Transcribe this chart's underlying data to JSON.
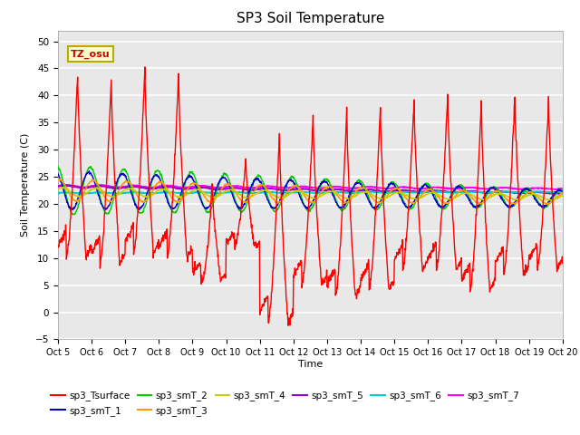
{
  "title": "SP3 Soil Temperature",
  "xlabel": "Time",
  "ylabel": "Soil Temperature (C)",
  "annotation": "TZ_osu",
  "ylim": [
    -5,
    52
  ],
  "xlim": [
    0,
    360
  ],
  "x_tick_labels": [
    "Oct 5",
    "Oct 6",
    "Oct 7",
    "Oct 8",
    "Oct 9",
    "Oct 10",
    "Oct 11",
    "Oct 12",
    "Oct 13",
    "Oct 14",
    "Oct 15",
    "Oct 16",
    "Oct 17",
    "Oct 18",
    "Oct 19",
    "Oct 20"
  ],
  "x_tick_positions": [
    0,
    24,
    48,
    72,
    96,
    120,
    144,
    168,
    192,
    216,
    240,
    264,
    288,
    312,
    336,
    360
  ],
  "y_ticks": [
    -5,
    0,
    5,
    10,
    15,
    20,
    25,
    30,
    35,
    40,
    45,
    50
  ],
  "series_colors": {
    "sp3_Tsurface": "#ff0000",
    "sp3_smT_1": "#0000cc",
    "sp3_smT_2": "#00cc00",
    "sp3_smT_3": "#ff9900",
    "sp3_smT_4": "#cccc00",
    "sp3_smT_5": "#9900cc",
    "sp3_smT_6": "#00cccc",
    "sp3_smT_7": "#ff00ff"
  },
  "background_color": "#e8e8e8",
  "grid_color": "#ffffff",
  "title_fontsize": 11,
  "label_fontsize": 8,
  "tick_fontsize": 7.5
}
